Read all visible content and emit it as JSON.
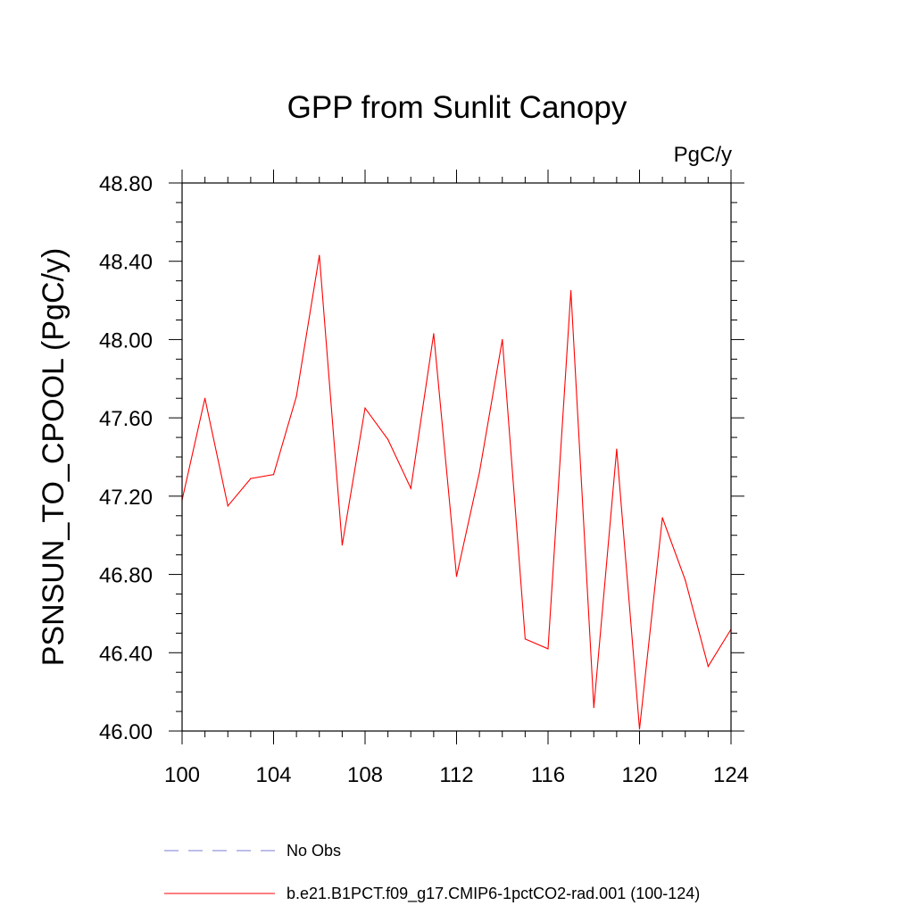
{
  "chart_data": {
    "type": "line",
    "title": "GPP from Sunlit Canopy",
    "units_label": "PgC/y",
    "ylabel": "PSNSUN_TO_CPOOL  (PgC/y)",
    "xlabel": "",
    "xlim": [
      100,
      124
    ],
    "ylim": [
      46.0,
      48.8
    ],
    "x_ticks": [
      "100",
      "104",
      "108",
      "112",
      "116",
      "120",
      "124"
    ],
    "y_ticks": [
      "46.00",
      "46.40",
      "46.80",
      "47.20",
      "47.60",
      "48.00",
      "48.40",
      "48.80"
    ],
    "grid": false,
    "legend_position": "bottom",
    "series": [
      {
        "name": "b.e21.B1PCT.f09_g17.CMIP6-1pctCO2-rad.001 (100-124)",
        "color": "#ff0000",
        "style": "solid",
        "x": [
          100,
          101,
          102,
          103,
          104,
          105,
          106,
          107,
          108,
          109,
          110,
          111,
          112,
          113,
          114,
          115,
          116,
          117,
          118,
          119,
          120,
          121,
          122,
          123,
          124
        ],
        "y": [
          47.18,
          47.7,
          47.15,
          47.29,
          47.31,
          47.71,
          48.43,
          46.95,
          47.65,
          47.49,
          47.24,
          48.03,
          46.79,
          47.32,
          48.0,
          46.47,
          46.42,
          48.25,
          46.12,
          47.44,
          46.01,
          47.09,
          46.77,
          46.33,
          46.52
        ]
      }
    ],
    "legend": [
      {
        "label": "No Obs",
        "color": "#7b7bd4",
        "style": "dashed"
      },
      {
        "label": "b.e21.B1PCT.f09_g17.CMIP6-1pctCO2-rad.001 (100-124)",
        "color": "#ff0000",
        "style": "solid"
      }
    ]
  }
}
